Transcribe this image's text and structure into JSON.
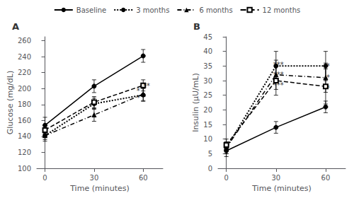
{
  "chart_data": [
    {
      "type": "line",
      "title": "A",
      "x": [
        0,
        30,
        60
      ],
      "xlim": [
        -5,
        72
      ],
      "xticks": [
        0,
        30,
        60
      ],
      "xlabel": "Time (minutes)",
      "ylabel": "Glucose (mg/dL)",
      "ylim": [
        100,
        265
      ],
      "yticks": [
        100,
        120,
        140,
        160,
        180,
        200,
        220,
        240,
        260
      ],
      "grid": false,
      "legend": "top",
      "series": [
        {
          "name": "Baseline",
          "color": "black",
          "marker": "circle",
          "line_style": "solid",
          "values": [
            154,
            203,
            241
          ],
          "errors": [
            10,
            8,
            8
          ]
        },
        {
          "name": "3 months",
          "color": "black",
          "marker": "circle",
          "line_style": "dotted",
          "values": [
            141,
            181,
            192
          ],
          "errors": [
            7,
            7,
            8
          ]
        },
        {
          "name": "6 months",
          "color": "black",
          "marker": "triangle",
          "line_style": "dashdot",
          "values": [
            141,
            167,
            193
          ],
          "errors": [
            5,
            8,
            8
          ]
        },
        {
          "name": "12 months",
          "color": "black",
          "marker": "square_open",
          "line_style": "dashed",
          "values": [
            148,
            183,
            204
          ],
          "errors": [
            5,
            7,
            7
          ]
        }
      ],
      "annotations": [
        {
          "x": 57,
          "y": 197,
          "text": "*"
        },
        {
          "x": 57,
          "y": 188,
          "text": "*"
        },
        {
          "x": 62,
          "y": 203,
          "text": "**"
        }
      ]
    },
    {
      "type": "line",
      "title": "B",
      "x": [
        0,
        30,
        60
      ],
      "xlim": [
        -5,
        72
      ],
      "xticks": [
        0,
        30,
        60
      ],
      "xlabel": "Time (minutes)",
      "ylabel": "Insulin (μU/mL)",
      "ylim": [
        0,
        45
      ],
      "yticks": [
        0,
        5,
        10,
        15,
        20,
        25,
        30,
        35,
        40,
        45
      ],
      "grid": false,
      "series": [
        {
          "name": "Baseline",
          "color": "black",
          "marker": "circle",
          "line_style": "solid",
          "values": [
            6,
            14,
            21
          ],
          "errors": [
            2,
            2,
            2
          ]
        },
        {
          "name": "3 months",
          "color": "black",
          "marker": "circle",
          "line_style": "dotted",
          "values": [
            7,
            35,
            35
          ],
          "errors": [
            2,
            5,
            5
          ]
        },
        {
          "name": "6 months",
          "color": "black",
          "marker": "triangle",
          "line_style": "dashdot",
          "values": [
            7,
            32,
            31
          ],
          "errors": [
            2,
            5,
            5
          ]
        },
        {
          "name": "12 months",
          "color": "black",
          "marker": "square_open",
          "line_style": "dashed",
          "values": [
            8,
            30,
            28
          ],
          "errors": [
            2,
            5,
            6
          ]
        }
      ],
      "annotations": [
        {
          "x": 31.5,
          "y": 35.5,
          "text": "***"
        },
        {
          "x": 31.5,
          "y": 32.0,
          "text": "***"
        },
        {
          "x": 31.5,
          "y": 28.5,
          "text": "***"
        },
        {
          "x": 61.5,
          "y": 35.0,
          "text": "*"
        },
        {
          "x": 61.5,
          "y": 31.0,
          "text": "*"
        },
        {
          "x": 61.5,
          "y": 27.5,
          "text": "*"
        }
      ]
    }
  ]
}
